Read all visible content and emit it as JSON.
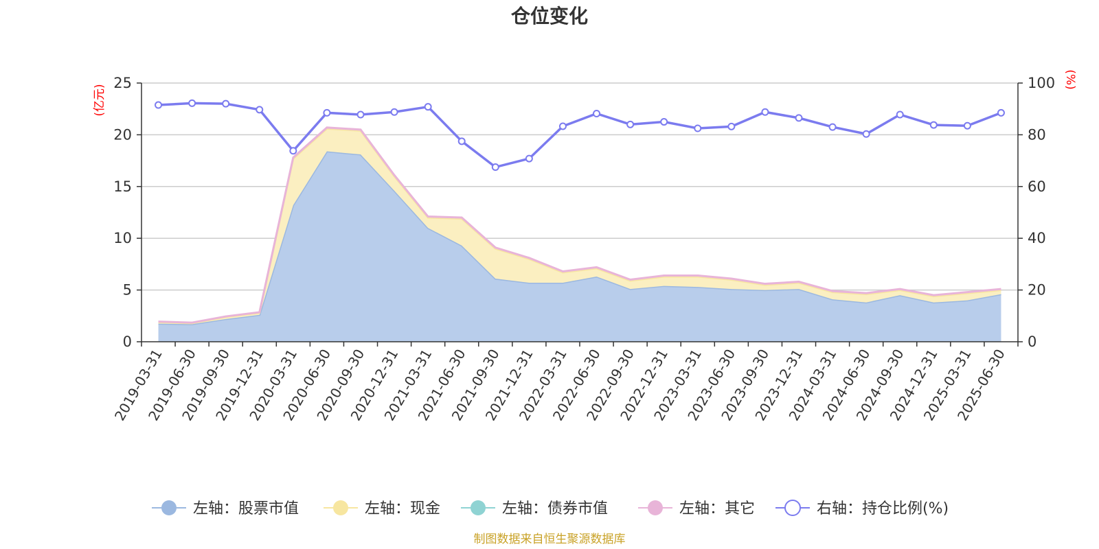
{
  "chart_data": {
    "type": "area",
    "title": "仓位变化",
    "left_axis_unit": "(亿元)",
    "right_axis_unit": "(%)",
    "left_ylim": [
      0,
      25
    ],
    "left_yticks": [
      0,
      5,
      10,
      15,
      20,
      25
    ],
    "right_ylim": [
      0,
      100
    ],
    "right_yticks": [
      0,
      20,
      40,
      60,
      80,
      100
    ],
    "grid": true,
    "legend_position": "bottom",
    "categories": [
      "2019-03-31",
      "2019-06-30",
      "2019-09-30",
      "2019-12-31",
      "2020-03-31",
      "2020-06-30",
      "2020-09-30",
      "2020-12-31",
      "2021-03-31",
      "2021-06-30",
      "2021-09-30",
      "2021-12-31",
      "2022-03-31",
      "2022-06-30",
      "2022-09-30",
      "2022-12-31",
      "2023-03-31",
      "2023-06-30",
      "2023-09-30",
      "2023-12-31",
      "2024-03-31",
      "2024-06-30",
      "2024-09-30",
      "2024-12-31",
      "2025-03-31",
      "2025-06-30"
    ],
    "series": [
      {
        "name": "左轴：股票市值",
        "axis": "left",
        "color": "#9bb8e0",
        "fill": "#b8cdeb",
        "values": [
          1.75,
          1.7,
          2.2,
          2.6,
          13.2,
          18.4,
          18.1,
          14.6,
          11.0,
          9.3,
          6.1,
          5.7,
          5.7,
          6.3,
          5.1,
          5.4,
          5.3,
          5.1,
          5.0,
          5.1,
          4.1,
          3.8,
          4.5,
          3.8,
          4.0,
          4.6
        ]
      },
      {
        "name": "左轴：现金",
        "axis": "left",
        "color": "#f7e6a0",
        "fill": "#fbefc1",
        "values": [
          0.15,
          0.1,
          0.2,
          0.2,
          4.5,
          2.2,
          2.3,
          1.4,
          1.0,
          2.6,
          2.9,
          2.3,
          1.0,
          0.8,
          0.8,
          0.9,
          1.0,
          0.9,
          0.5,
          0.6,
          0.7,
          0.8,
          0.5,
          0.6,
          0.7,
          0.4
        ]
      },
      {
        "name": "左轴：债券市值",
        "axis": "left",
        "color": "#8fd3d3",
        "fill": "#a9dede",
        "values": [
          0,
          0,
          0,
          0,
          0,
          0,
          0,
          0,
          0,
          0,
          0,
          0,
          0,
          0,
          0,
          0,
          0,
          0,
          0,
          0,
          0,
          0,
          0,
          0,
          0,
          0
        ]
      },
      {
        "name": "左轴：其它",
        "axis": "left",
        "color": "#e8b4d8",
        "fill": "#f0cde5",
        "values": [
          0.05,
          0.05,
          0.05,
          0.05,
          0.1,
          0.1,
          0.1,
          0.1,
          0.1,
          0.1,
          0.1,
          0.1,
          0.1,
          0.1,
          0.1,
          0.1,
          0.1,
          0.1,
          0.1,
          0.1,
          0.1,
          0.1,
          0.1,
          0.1,
          0.1,
          0.1
        ]
      },
      {
        "name": "右轴：持仓比例(%)",
        "axis": "right",
        "color": "#7b7bef",
        "values": [
          91.5,
          92.2,
          92.0,
          89.7,
          73.8,
          88.5,
          87.8,
          88.8,
          90.8,
          77.5,
          67.5,
          70.8,
          83.3,
          88.2,
          84.0,
          85.0,
          82.5,
          83.2,
          88.8,
          86.5,
          83.0,
          80.3,
          87.8,
          83.8,
          83.5,
          88.5
        ]
      }
    ]
  },
  "source_note": "制图数据来自恒生聚源数据库"
}
